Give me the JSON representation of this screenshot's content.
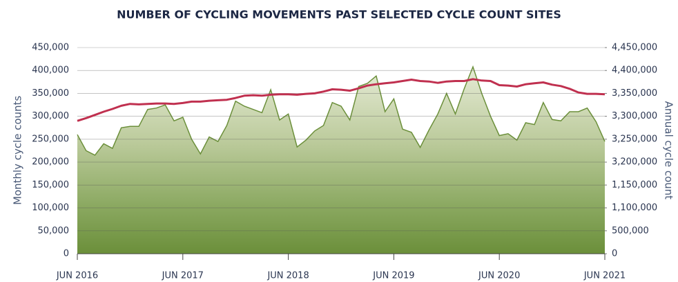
{
  "chart_data": {
    "type": "area_line",
    "title": "NUMBER OF CYCLING MOVEMENTS PAST SELECTED CYCLE COUNT SITES",
    "ylabel": "Monthly cycle counts",
    "y2label": "Annual cycle count",
    "categories": [
      "JUN 2016",
      null,
      null,
      null,
      null,
      null,
      null,
      null,
      null,
      null,
      null,
      null,
      "JUN 2017",
      null,
      null,
      null,
      null,
      null,
      null,
      null,
      null,
      null,
      null,
      null,
      "JUN 2018",
      null,
      null,
      null,
      null,
      null,
      null,
      null,
      null,
      null,
      null,
      null,
      "JUN 2019",
      null,
      null,
      null,
      null,
      null,
      null,
      null,
      null,
      null,
      null,
      null,
      "JUN 2020",
      null,
      null,
      null,
      null,
      null,
      null,
      null,
      null,
      null,
      null,
      null,
      "JUN 2021"
    ],
    "ylim": [
      0,
      450000
    ],
    "yticks": [
      0,
      {
        "value": 50000,
        "label": "50,000"
      },
      {
        "value": 100000,
        "label": "100,000"
      },
      {
        "value": 150000,
        "label": "150,000"
      },
      {
        "value": 200000,
        "label": "200,000"
      },
      {
        "value": 250000,
        "label": "250,000"
      },
      {
        "value": 300000,
        "label": "300,000"
      },
      {
        "value": 350000,
        "label": "350,000"
      },
      {
        "value": 400000,
        "label": "400,000"
      },
      {
        "value": 450000,
        "label": "450,000"
      }
    ],
    "y2lim": [
      0,
      4450000
    ],
    "y2ticks": [
      0,
      {
        "value": 500000,
        "label": "500,000"
      },
      {
        "value": 1100000,
        "label": "1,100,000"
      },
      {
        "value": 1150000,
        "label": "1,150,000"
      },
      {
        "value": 3200000,
        "label": "3,200,000"
      },
      {
        "value": 3250000,
        "label": "3,250,000"
      },
      {
        "value": 3300000,
        "label": "3,300,000"
      },
      {
        "value": 3350000,
        "label": "3,350,000"
      },
      {
        "value": 4400000,
        "label": "4,400,000"
      },
      {
        "value": 4450000,
        "label": "4,450,000"
      }
    ],
    "grid": true,
    "series": [
      {
        "color": "#6b8f3a",
        "kind": "area",
        "values": [
          260000,
          225000,
          215000,
          240000,
          230000,
          275000,
          278000,
          278000,
          315000,
          318000,
          325000,
          290000,
          298000,
          250000,
          218000,
          255000,
          245000,
          280000,
          333000,
          322000,
          315000,
          308000,
          358000,
          292000,
          305000,
          233000,
          248000,
          268000,
          280000,
          330000,
          322000,
          292000,
          365000,
          372000,
          388000,
          310000,
          338000,
          272000,
          265000,
          232000,
          270000,
          305000,
          350000,
          305000,
          360000,
          408000,
          350000,
          300000,
          258000,
          262000,
          248000,
          286000,
          282000,
          330000,
          293000,
          290000,
          310000,
          310000,
          318000,
          288000,
          245000
        ]
      },
      {
        "color": "#c0304f",
        "kind": "line",
        "axis": "y2",
        "values": [
          3290000,
          3296000,
          3303000,
          3310000,
          3316000,
          3323000,
          3327000,
          3326000,
          3327000,
          3328000,
          3328000,
          3327000,
          3329000,
          3332000,
          3332000,
          3334000,
          3335000,
          3336000,
          3340000,
          3345000,
          3346000,
          3345000,
          3347000,
          3348000,
          3348000,
          3347000,
          3349000,
          3350000,
          3434000,
          3539000,
          3518000,
          3476000,
          3581000,
          3707000,
          3770000,
          3812000,
          3854000,
          3917000,
          3980000,
          3917000,
          3896000,
          3833000,
          3896000,
          3917000,
          3917000,
          4001000,
          3938000,
          3917000,
          3728000,
          3707000,
          3665000,
          3770000,
          3812000,
          3854000,
          3749000,
          3686000,
          3560000,
          3392000,
          3349000,
          3349000,
          3348000
        ]
      }
    ]
  }
}
